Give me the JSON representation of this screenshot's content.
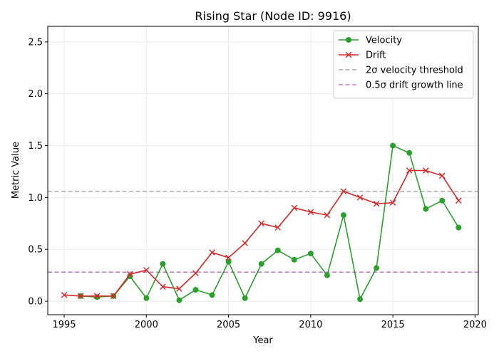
{
  "chart_data": {
    "type": "line",
    "title": "Rising Star (Node ID: 9916)",
    "xlabel": "Year",
    "ylabel": "Metric Value",
    "xlim": [
      1994,
      2020.2
    ],
    "ylim": [
      -0.13,
      2.65
    ],
    "xticks": [
      1995,
      2000,
      2005,
      2010,
      2015,
      2020
    ],
    "yticks": [
      0.0,
      0.5,
      1.0,
      1.5,
      2.0,
      2.5
    ],
    "ytick_labels": [
      "0.0",
      "0.5",
      "1.0",
      "1.5",
      "2.0",
      "2.5"
    ],
    "grid": true,
    "legend_position": "top-right",
    "series": [
      {
        "name": "Velocity",
        "color": "#2ca02c",
        "marker": "circle",
        "x": [
          1996,
          1997,
          1998,
          1999,
          2000,
          2001,
          2002,
          2003,
          2004,
          2005,
          2006,
          2007,
          2008,
          2009,
          2010,
          2011,
          2012,
          2013,
          2014,
          2015,
          2016,
          2017,
          2018,
          2019
        ],
        "y": [
          0.05,
          0.04,
          0.05,
          0.24,
          0.03,
          0.36,
          0.01,
          0.11,
          0.06,
          0.38,
          0.03,
          0.36,
          0.49,
          0.4,
          0.46,
          0.25,
          0.83,
          0.02,
          0.32,
          1.5,
          1.43,
          0.89,
          0.97,
          0.71
        ]
      },
      {
        "name": "Drift",
        "color": "#d62728",
        "marker": "x",
        "x": [
          1995,
          1996,
          1997,
          1998,
          1999,
          2000,
          2001,
          2002,
          2003,
          2004,
          2005,
          2006,
          2007,
          2008,
          2009,
          2010,
          2011,
          2012,
          2013,
          2014,
          2015,
          2016,
          2017,
          2018,
          2019
        ],
        "y": [
          0.06,
          0.05,
          0.05,
          0.05,
          0.26,
          0.3,
          0.14,
          0.12,
          0.27,
          0.47,
          0.42,
          0.56,
          0.75,
          0.71,
          0.9,
          0.86,
          0.83,
          1.06,
          1.0,
          0.94,
          0.95,
          1.26,
          1.26,
          1.21,
          0.97
        ]
      }
    ],
    "reference_lines": [
      {
        "name": "2σ velocity threshold",
        "y": 1.06,
        "color": "#aaaaaa",
        "style": "dashed"
      },
      {
        "name": "0.5σ drift growth line",
        "y": 0.28,
        "color": "#c27bc0",
        "style": "dashed"
      }
    ]
  }
}
